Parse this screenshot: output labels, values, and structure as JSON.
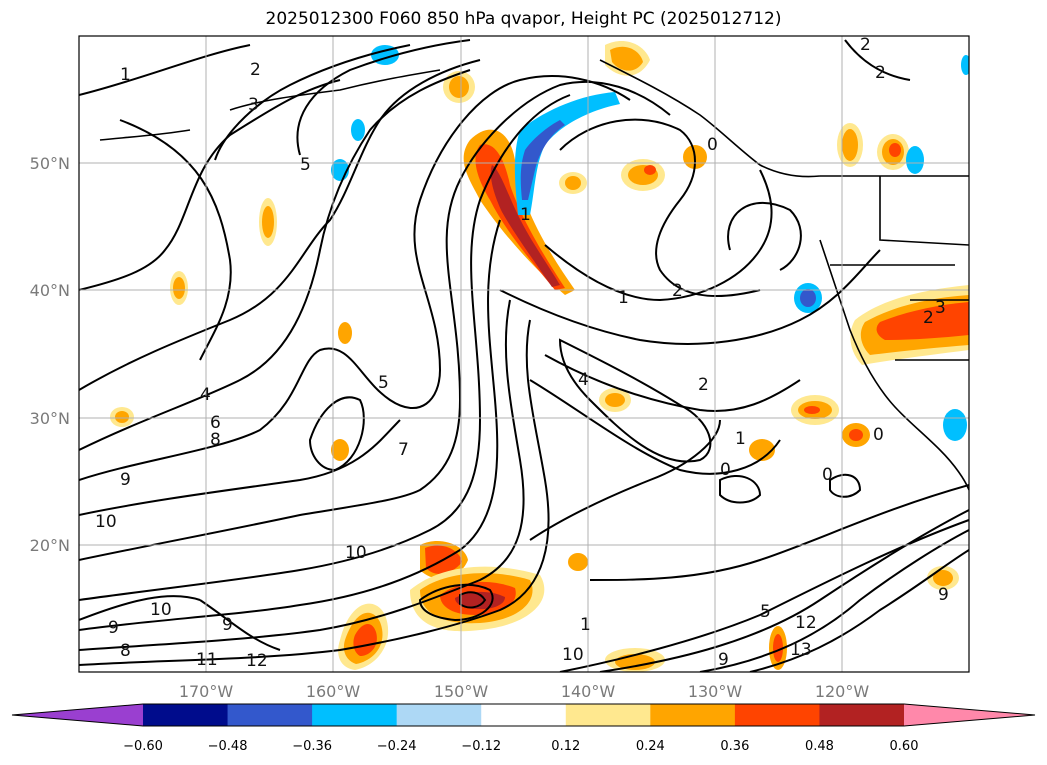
{
  "title": "2025012300 F060 850 hPa qvapor, Height PC (2025012712)",
  "map": {
    "lon_range": [
      -180,
      -110
    ],
    "lat_range": [
      10,
      60
    ],
    "lon_ticks": [
      "170°W",
      "160°W",
      "150°W",
      "140°W",
      "130°W",
      "120°W"
    ],
    "lat_ticks": [
      "50°N",
      "40°N",
      "30°N",
      "20°N"
    ],
    "grid": true,
    "contour_labels": [
      "1",
      "2",
      "3",
      "4",
      "5",
      "6",
      "7",
      "8",
      "9",
      "10",
      "11",
      "12",
      "13",
      "0"
    ]
  },
  "colorbar": {
    "labels": [
      "−0.60",
      "−0.48",
      "−0.36",
      "−0.24",
      "−0.12",
      "0.12",
      "0.24",
      "0.36",
      "0.48",
      "0.60"
    ],
    "colors": [
      "#9a3fd0",
      "#000c8c",
      "#3358cc",
      "#00bfff",
      "#add8f5",
      "#ffffff",
      "#ffe88f",
      "#ffa500",
      "#ff4400",
      "#b22222",
      "#ff88aa"
    ],
    "extend": "both"
  }
}
